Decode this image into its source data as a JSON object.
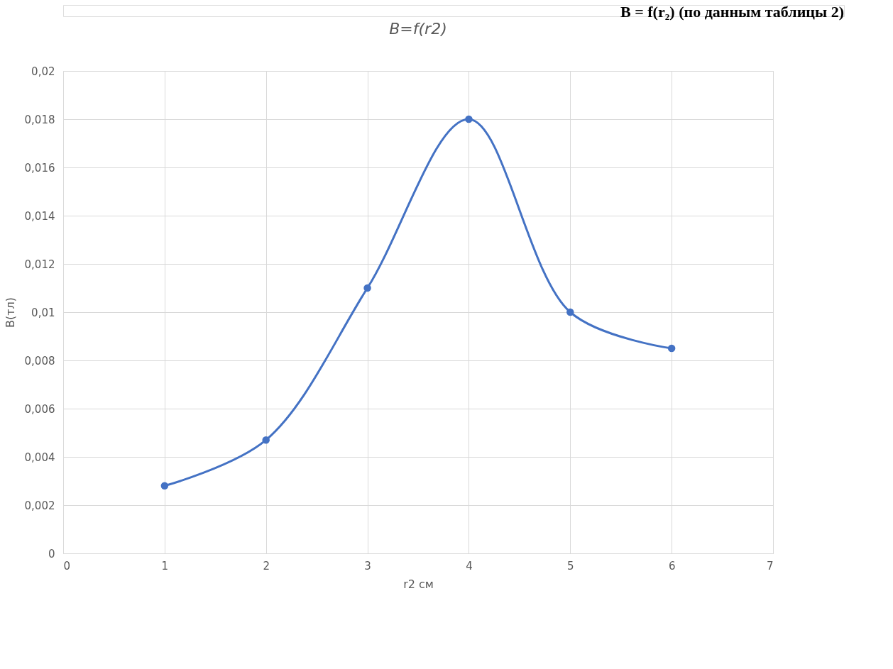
{
  "chart_data": {
    "type": "line",
    "title": "B=f(r2)",
    "xlabel": "r2 см",
    "ylabel": "B(тл)",
    "annotations": [
      "B = f(r₂) (по данным таблицы 2)"
    ],
    "x": [
      1,
      2,
      3,
      4,
      5,
      6
    ],
    "series": [
      {
        "color": "#4472c4",
        "values": [
          0.0028,
          0.0047,
          0.011,
          0.018,
          0.01,
          0.0085
        ]
      }
    ],
    "xlim": [
      0,
      7
    ],
    "xticks": [
      0,
      1,
      2,
      3,
      4,
      5,
      6,
      7
    ],
    "ylim": [
      0,
      0.02
    ],
    "yticks": [
      0,
      {
        "value": 0.002,
        "label": "0,002"
      },
      {
        "value": 0.004,
        "label": "0,004"
      },
      {
        "value": 0.006,
        "label": "0,006"
      },
      {
        "value": 0.008,
        "label": "0,008"
      },
      {
        "value": 0.01,
        "label": "0,01"
      },
      {
        "value": 0.012,
        "label": "0,012"
      },
      {
        "value": 0.014,
        "label": "0,014"
      },
      {
        "value": 0.016,
        "label": "0,016"
      },
      {
        "value": 0.018,
        "label": "0,018"
      },
      {
        "value": 0.02,
        "label": "0,02"
      }
    ],
    "grid": true,
    "marker": "circle",
    "line_style": "solid"
  }
}
